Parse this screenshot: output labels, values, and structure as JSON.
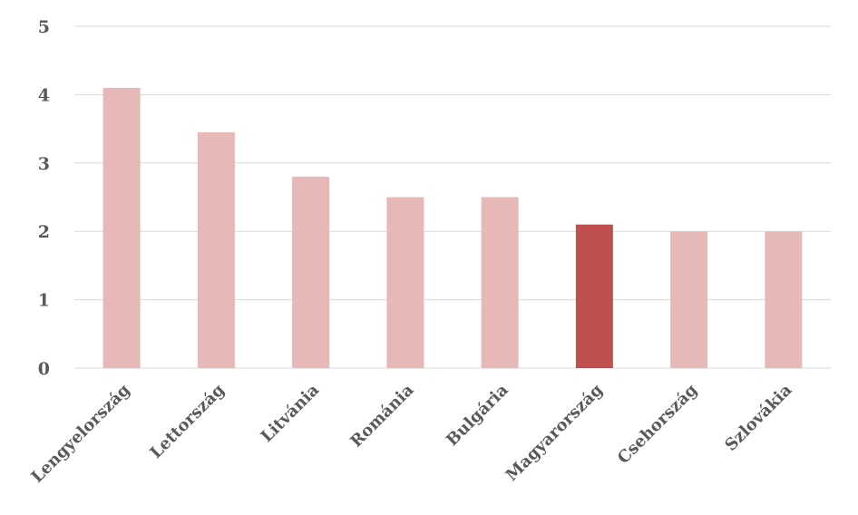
{
  "chart_data": {
    "type": "bar",
    "categories": [
      "Lengyelország",
      "Lettország",
      "Litvánia",
      "Románia",
      "Bulgária",
      "Magyarország",
      "Csehország",
      "Szlovákia"
    ],
    "values": [
      4.1,
      3.45,
      2.8,
      2.5,
      2.5,
      2.1,
      2.0,
      2.0
    ],
    "highlight_category": "Magyarország",
    "colors": {
      "bar": "#e6b8b7",
      "highlight": "#c0504d",
      "grid": "#d9d9d9",
      "text": "#595959"
    },
    "ylim": [
      0,
      5
    ],
    "yticks": [
      "0",
      "1",
      "2",
      "3",
      "4",
      "5"
    ],
    "grid": true,
    "legend": "none",
    "title": "",
    "xlabel": "",
    "ylabel": ""
  }
}
